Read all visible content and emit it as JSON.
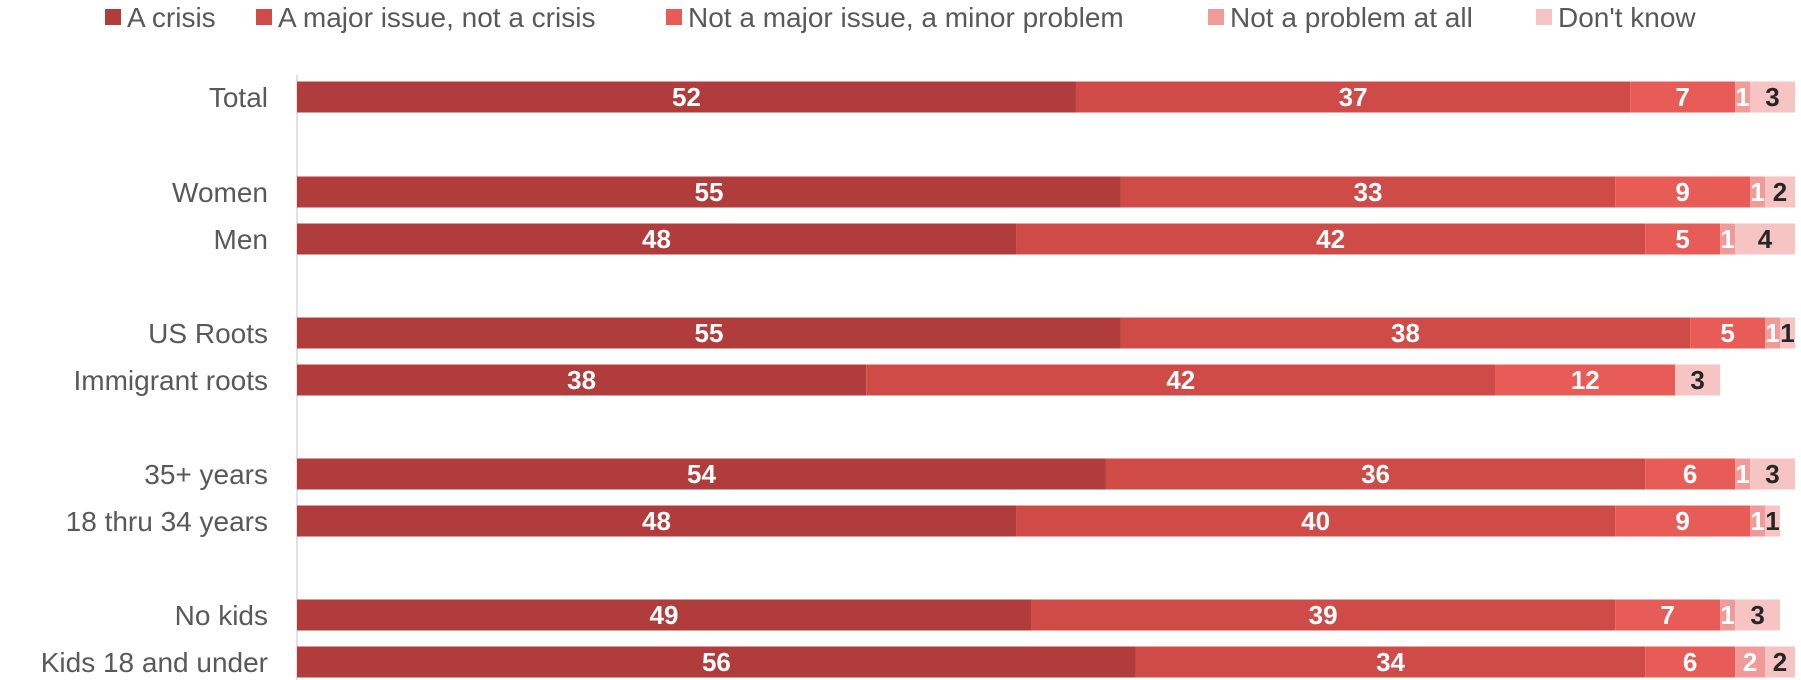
{
  "chart_data": {
    "type": "bar",
    "orientation": "horizontal",
    "stacked": true,
    "legend_position": "top",
    "xlim": [
      0,
      100
    ],
    "categories": [
      "Total",
      "Women",
      "Men",
      "US Roots",
      "Immigrant roots",
      "35+ years",
      "18 thru 34 years",
      "No kids",
      "Kids 18 and under"
    ],
    "series": [
      {
        "name": "A crisis",
        "color": "#b03c3b",
        "label_color": "#ffffff",
        "values": [
          52,
          55,
          48,
          55,
          38,
          54,
          48,
          49,
          56
        ]
      },
      {
        "name": "A major issue, not a crisis",
        "color": "#cf4b47",
        "label_color": "#ffffff",
        "values": [
          37,
          33,
          42,
          38,
          42,
          36,
          40,
          39,
          34
        ]
      },
      {
        "name": "Not a major issue, a minor problem",
        "color": "#e85c57",
        "label_color": "#ffffff",
        "values": [
          7,
          9,
          5,
          5,
          12,
          6,
          9,
          7,
          6
        ]
      },
      {
        "name": "Not a problem at all",
        "color": "#f19b99",
        "label_color": "#ffffff",
        "values": [
          1,
          1,
          1,
          1,
          null,
          1,
          1,
          1,
          2
        ]
      },
      {
        "name": "Don't know",
        "color": "#f6c4c3",
        "label_color": "#262626",
        "values": [
          3,
          2,
          4,
          1,
          3,
          3,
          1,
          3,
          2
        ]
      }
    ]
  }
}
